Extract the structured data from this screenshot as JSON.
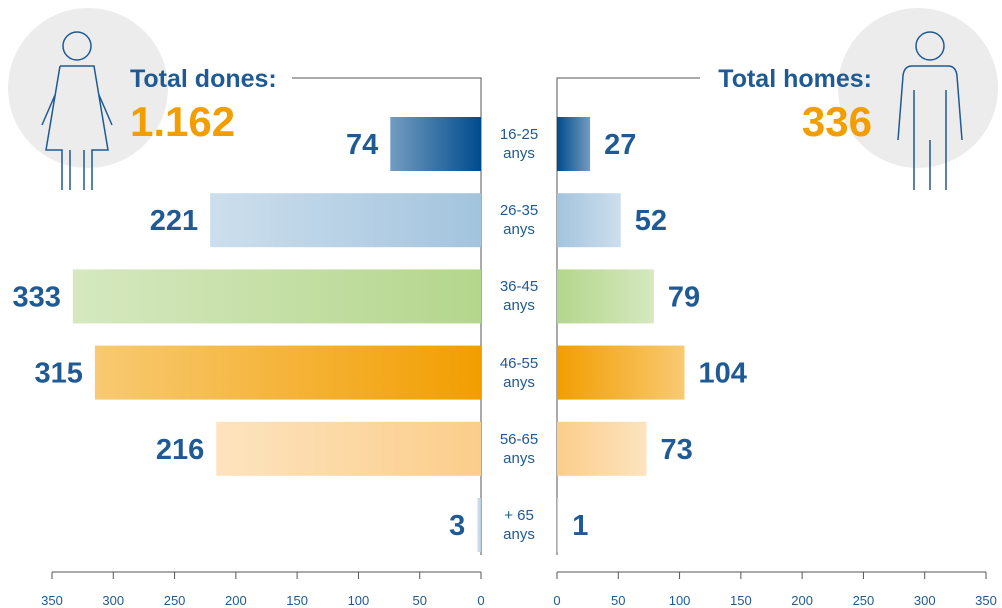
{
  "chart_data": {
    "type": "pyramid",
    "left_title": "Total dones:",
    "left_total": "1.162",
    "right_title": "Total homes:",
    "right_total": "336",
    "categories": [
      "16-25 anys",
      "26-35 anys",
      "36-45 anys",
      "46-55 anys",
      "56-65 anys",
      "+ 65 anys"
    ],
    "colors": [
      "#004b8d",
      "#a3c4de",
      "#b4d68c",
      "#f29e00",
      "#fbcd8a",
      "#b9cfe4"
    ],
    "series": [
      {
        "values": [
          74,
          221,
          333,
          315,
          216,
          3
        ]
      },
      {
        "values": [
          27,
          52,
          79,
          104,
          73,
          1
        ]
      }
    ],
    "xlim": [
      0,
      350
    ],
    "xticks": [
      0,
      50,
      100,
      150,
      200,
      250,
      300,
      350
    ]
  }
}
